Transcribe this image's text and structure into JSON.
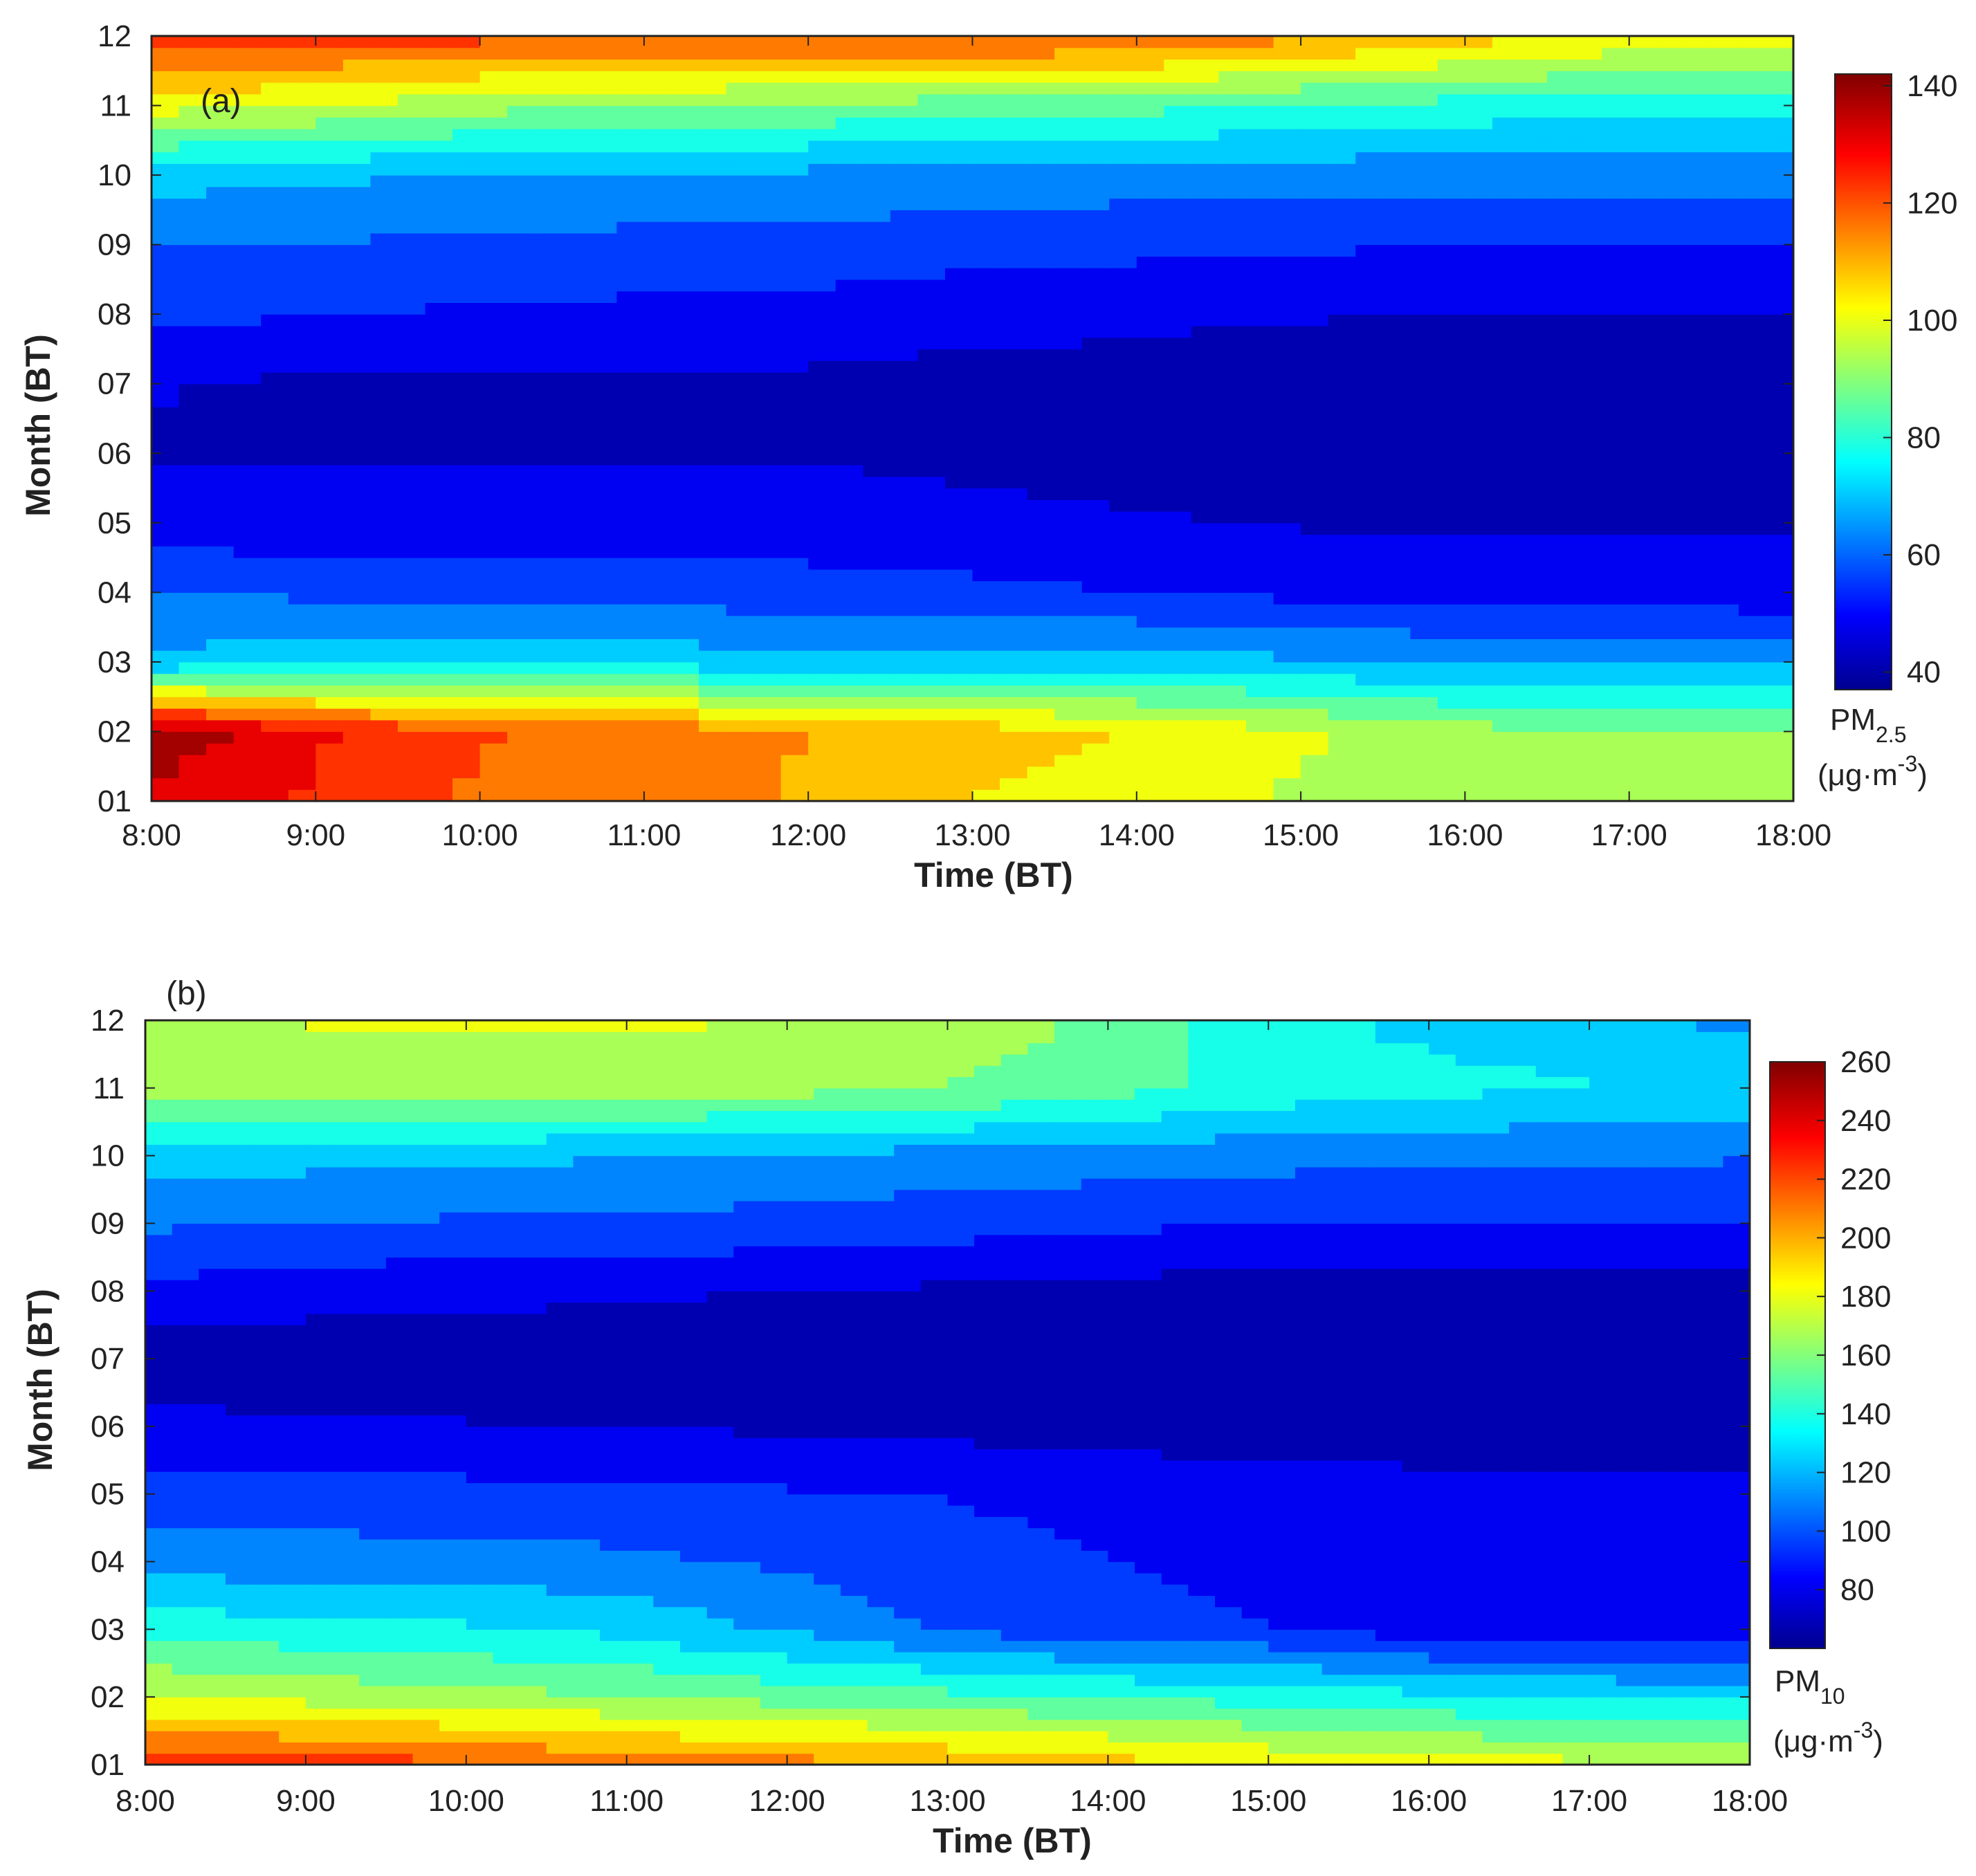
{
  "chart_data": [
    {
      "panel": "(a)",
      "type": "heatmap",
      "xlabel": "Time (BT)",
      "ylabel": "Month (BT)",
      "x": [
        "8:00",
        "9:00",
        "10:00",
        "11:00",
        "12:00",
        "13:00",
        "14:00",
        "15:00",
        "16:00",
        "17:00",
        "18:00"
      ],
      "y": [
        "01",
        "02",
        "03",
        "04",
        "05",
        "06",
        "07",
        "08",
        "09",
        "10",
        "11",
        "12"
      ],
      "values": [
        [
          132,
          126,
          118,
          118,
          110,
          104,
          101,
          96,
          92,
          90,
          91
        ],
        [
          140,
          128,
          120,
          118,
          112,
          108,
          104,
          98,
          92,
          90,
          91
        ],
        [
          68,
          72,
          72,
          71,
          70,
          70,
          70,
          68,
          66,
          66,
          66
        ],
        [
          60,
          58,
          58,
          57,
          55,
          54,
          52,
          50,
          49,
          48,
          47
        ],
        [
          47,
          47,
          47,
          47,
          48,
          46,
          45,
          44,
          44,
          44,
          44
        ],
        [
          44,
          44,
          44,
          44,
          44,
          43,
          42,
          42,
          40,
          42,
          41
        ],
        [
          45,
          43,
          43,
          43,
          43,
          42,
          42,
          40,
          40,
          40,
          40
        ],
        [
          54,
          52,
          51,
          50,
          49,
          47,
          46,
          45,
          44,
          44,
          44
        ],
        [
          60,
          59,
          58,
          57,
          57,
          55,
          54,
          53,
          52,
          52,
          52
        ],
        [
          70,
          68,
          67,
          66,
          65,
          64,
          63,
          63,
          62,
          62,
          62
        ],
        [
          100,
          97,
          92,
          90,
          88,
          86,
          84,
          81,
          79,
          77,
          76
        ],
        [
          124,
          124,
          122,
          121,
          121,
          122,
          120,
          114,
          108,
          102,
          100
        ]
      ],
      "colorbar": {
        "ticks": [
          40,
          60,
          80,
          100,
          120,
          140
        ],
        "range": [
          37,
          142
        ],
        "label": "PM",
        "label_sub": "2.5",
        "units": "(μg·m",
        "units_sup": "-3",
        "units_close": ")"
      }
    },
    {
      "panel": "(b)",
      "type": "heatmap",
      "xlabel": "Time (BT)",
      "ylabel": "Month (BT)",
      "x": [
        "8:00",
        "9:00",
        "10:00",
        "11:00",
        "12:00",
        "13:00",
        "14:00",
        "15:00",
        "16:00",
        "17:00",
        "18:00"
      ],
      "y": [
        "01",
        "02",
        "03",
        "04",
        "05",
        "06",
        "07",
        "08",
        "09",
        "10",
        "11",
        "12"
      ],
      "values": [
        [
          230,
          225,
          220,
          212,
          208,
          202,
          195,
          185,
          180,
          178,
          175
        ],
        [
          175,
          170,
          165,
          160,
          155,
          150,
          145,
          140,
          135,
          130,
          128
        ],
        [
          140,
          137,
          134,
          128,
          115,
          100,
          95,
          90,
          80,
          80,
          80
        ],
        [
          110,
          110,
          108,
          106,
          100,
          93,
          89,
          82,
          78,
          78,
          78
        ],
        [
          95,
          94,
          93,
          92,
          90,
          88,
          85,
          82,
          80,
          80,
          80
        ],
        [
          78,
          76,
          75,
          74,
          72,
          70,
          68,
          66,
          66,
          66,
          66
        ],
        [
          66,
          66,
          66,
          66,
          66,
          66,
          65,
          65,
          65,
          65,
          65
        ],
        [
          85,
          80,
          78,
          76,
          74,
          72,
          70,
          67,
          66,
          66,
          66
        ],
        [
          105,
          103,
          101,
          100,
          98,
          95,
          92,
          88,
          88,
          88,
          88
        ],
        [
          125,
          122,
          120,
          118,
          115,
          112,
          110,
          108,
          106,
          105,
          104
        ],
        [
          170,
          170,
          170,
          168,
          165,
          160,
          152,
          140,
          135,
          132,
          130
        ],
        [
          158,
          175,
          175,
          175,
          175,
          168,
          158,
          135,
          128,
          125,
          112
        ]
      ],
      "colorbar": {
        "ticks": [
          80,
          100,
          120,
          140,
          160,
          180,
          200,
          220,
          240,
          260
        ],
        "range": [
          60,
          260
        ],
        "label": "PM",
        "label_sub": "10",
        "units": "(μg·m",
        "units_sup": "-3",
        "units_close": ")"
      }
    }
  ]
}
